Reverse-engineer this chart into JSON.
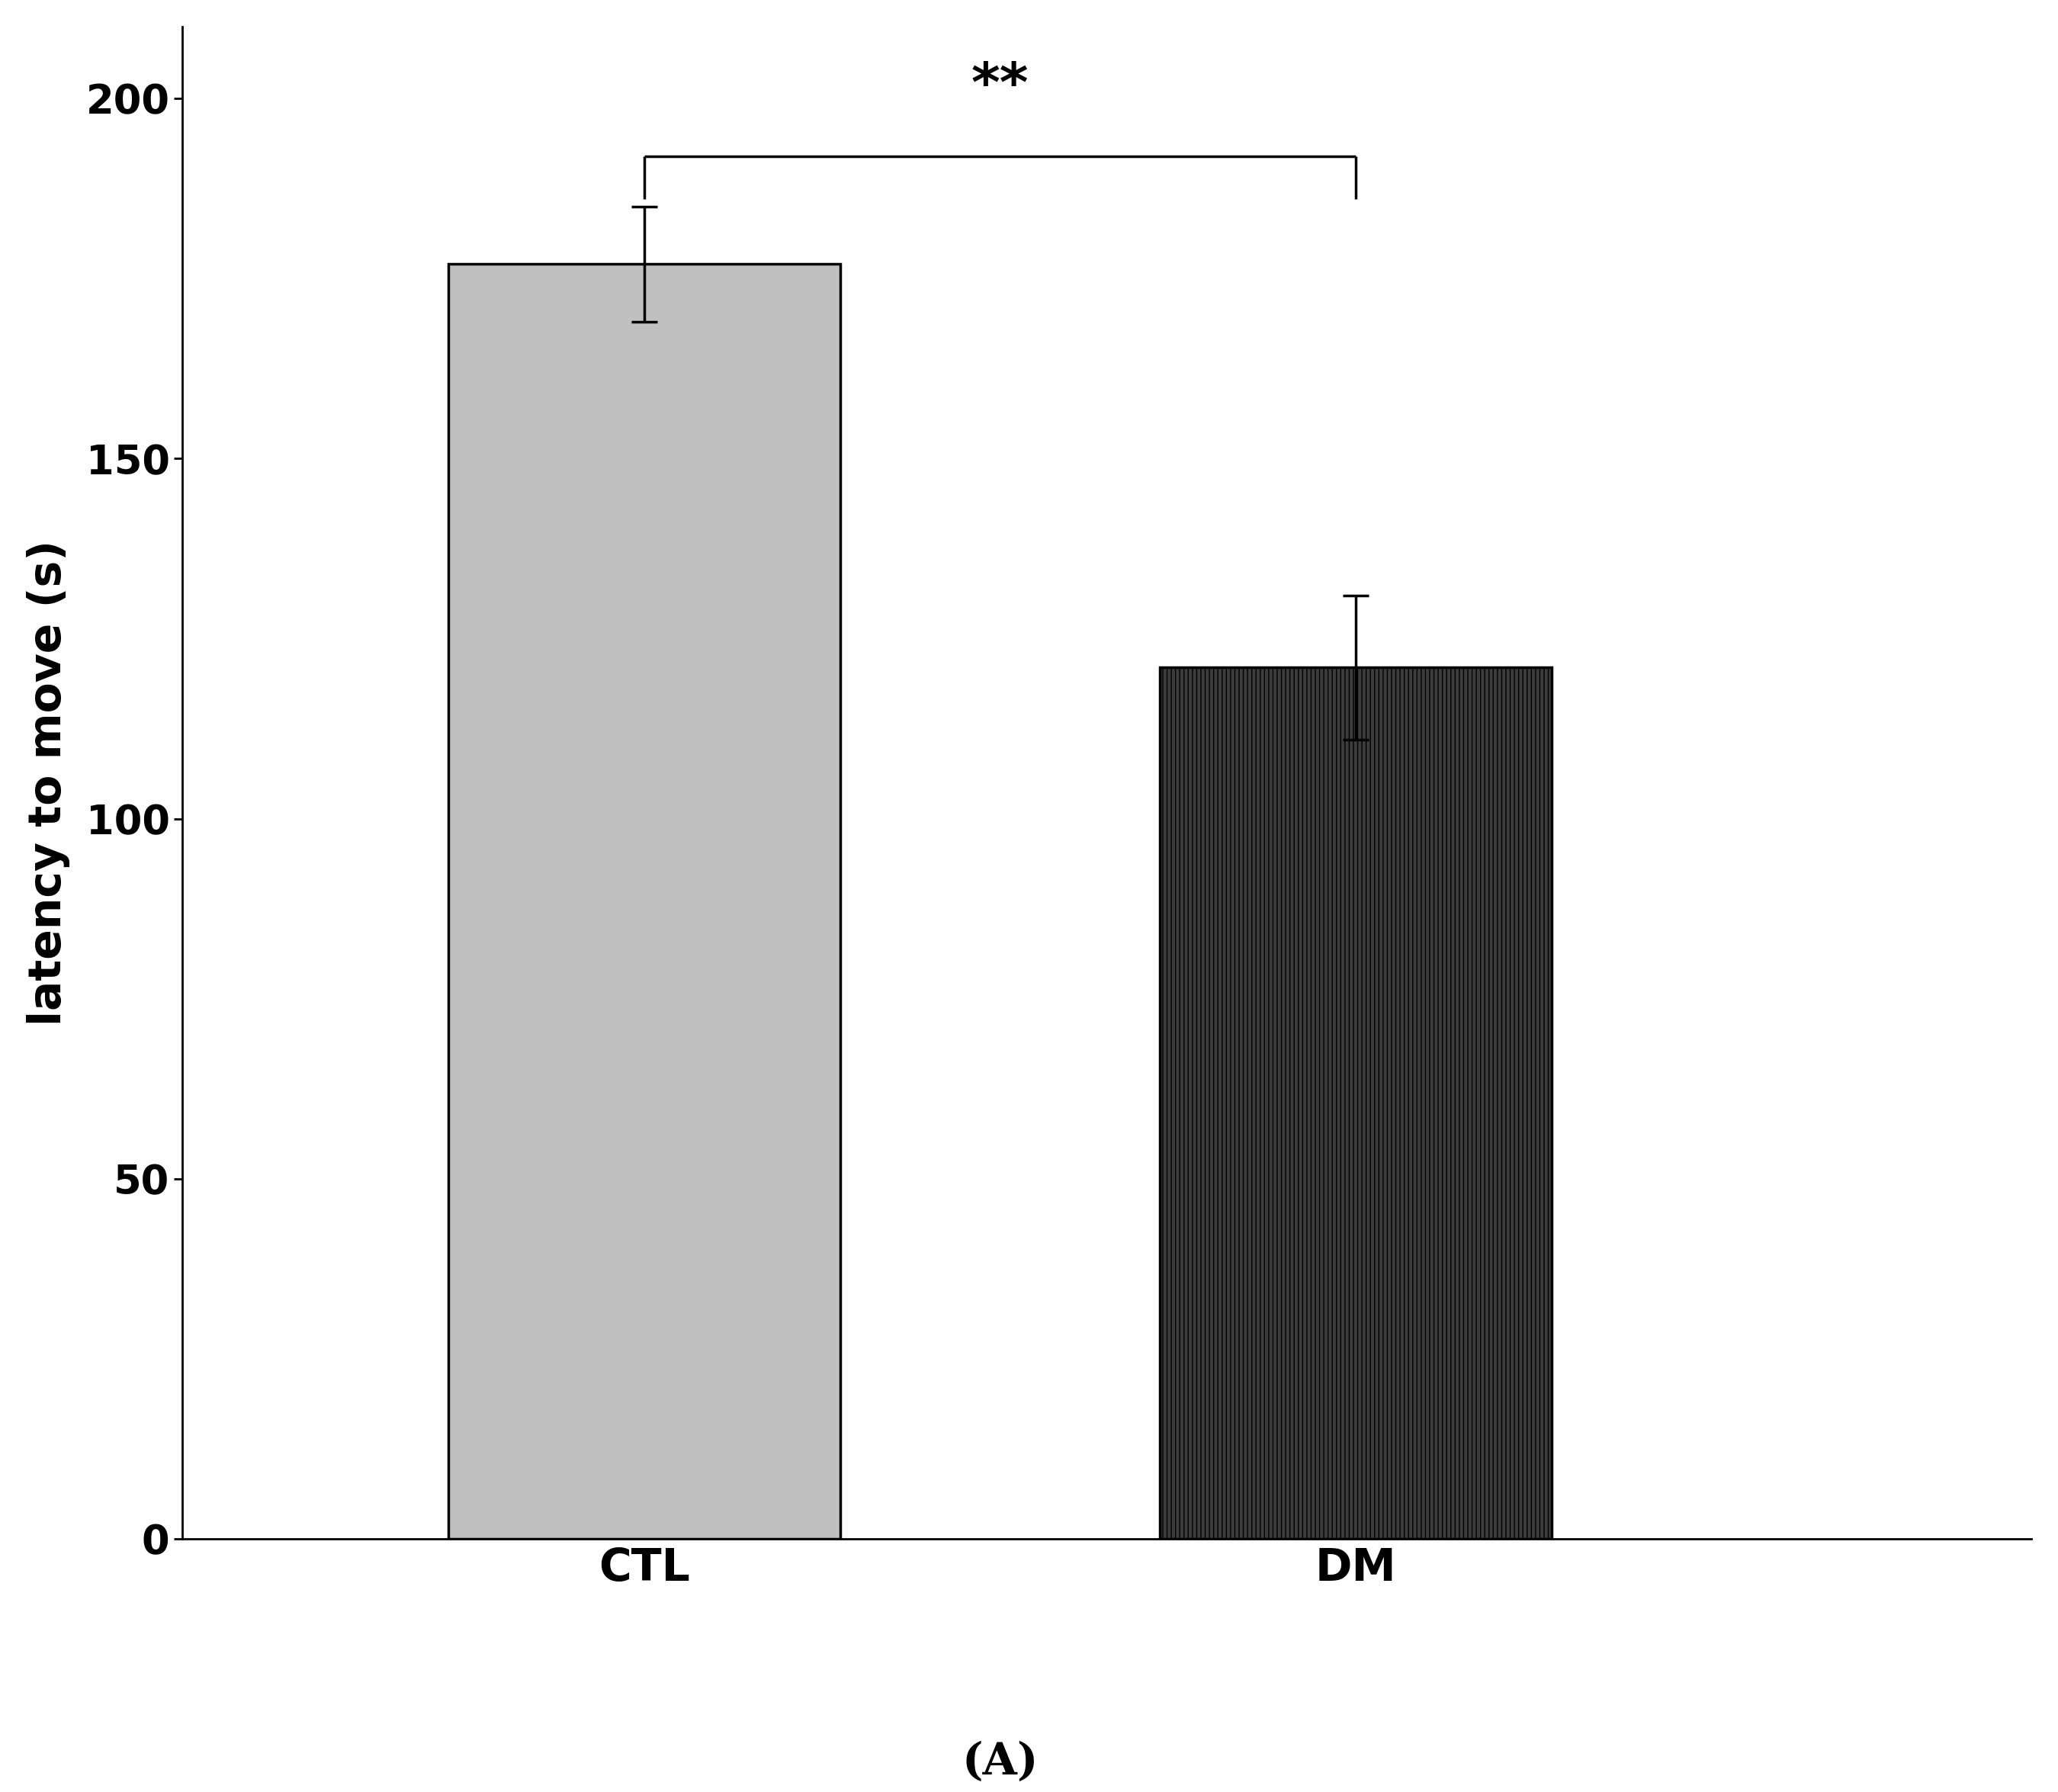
{
  "categories": [
    "CTL",
    "DM"
  ],
  "values": [
    177,
    121
  ],
  "errors": [
    8,
    10
  ],
  "bar_colors": [
    "#c0c0c0",
    "#3c3c3c"
  ],
  "bar_hatches": [
    "",
    "|||"
  ],
  "bar_edge_colors": [
    "#000000",
    "#000000"
  ],
  "ylabel": "latency to move (s)",
  "xlabel_bottom": "(A)",
  "ylim": [
    0,
    210
  ],
  "yticks": [
    0,
    50,
    100,
    150,
    200
  ],
  "significance_text": "**",
  "sig_y": 197,
  "sig_bracket_y": 192,
  "bracket_drop": 6,
  "bar_width": 0.55,
  "x_positions": [
    1,
    2
  ],
  "xlim": [
    0.35,
    2.95
  ],
  "background_color": "#ffffff",
  "ylabel_fontsize": 42,
  "tick_fontsize": 38,
  "category_fontsize": 42,
  "sig_fontsize": 52,
  "xlabel_bottom_fontsize": 42,
  "linewidth": 2.5,
  "errorbar_lw": 2.5,
  "errorbar_capsize": 12,
  "errorbar_capthick": 2.5,
  "bracket_lw": 2.5
}
